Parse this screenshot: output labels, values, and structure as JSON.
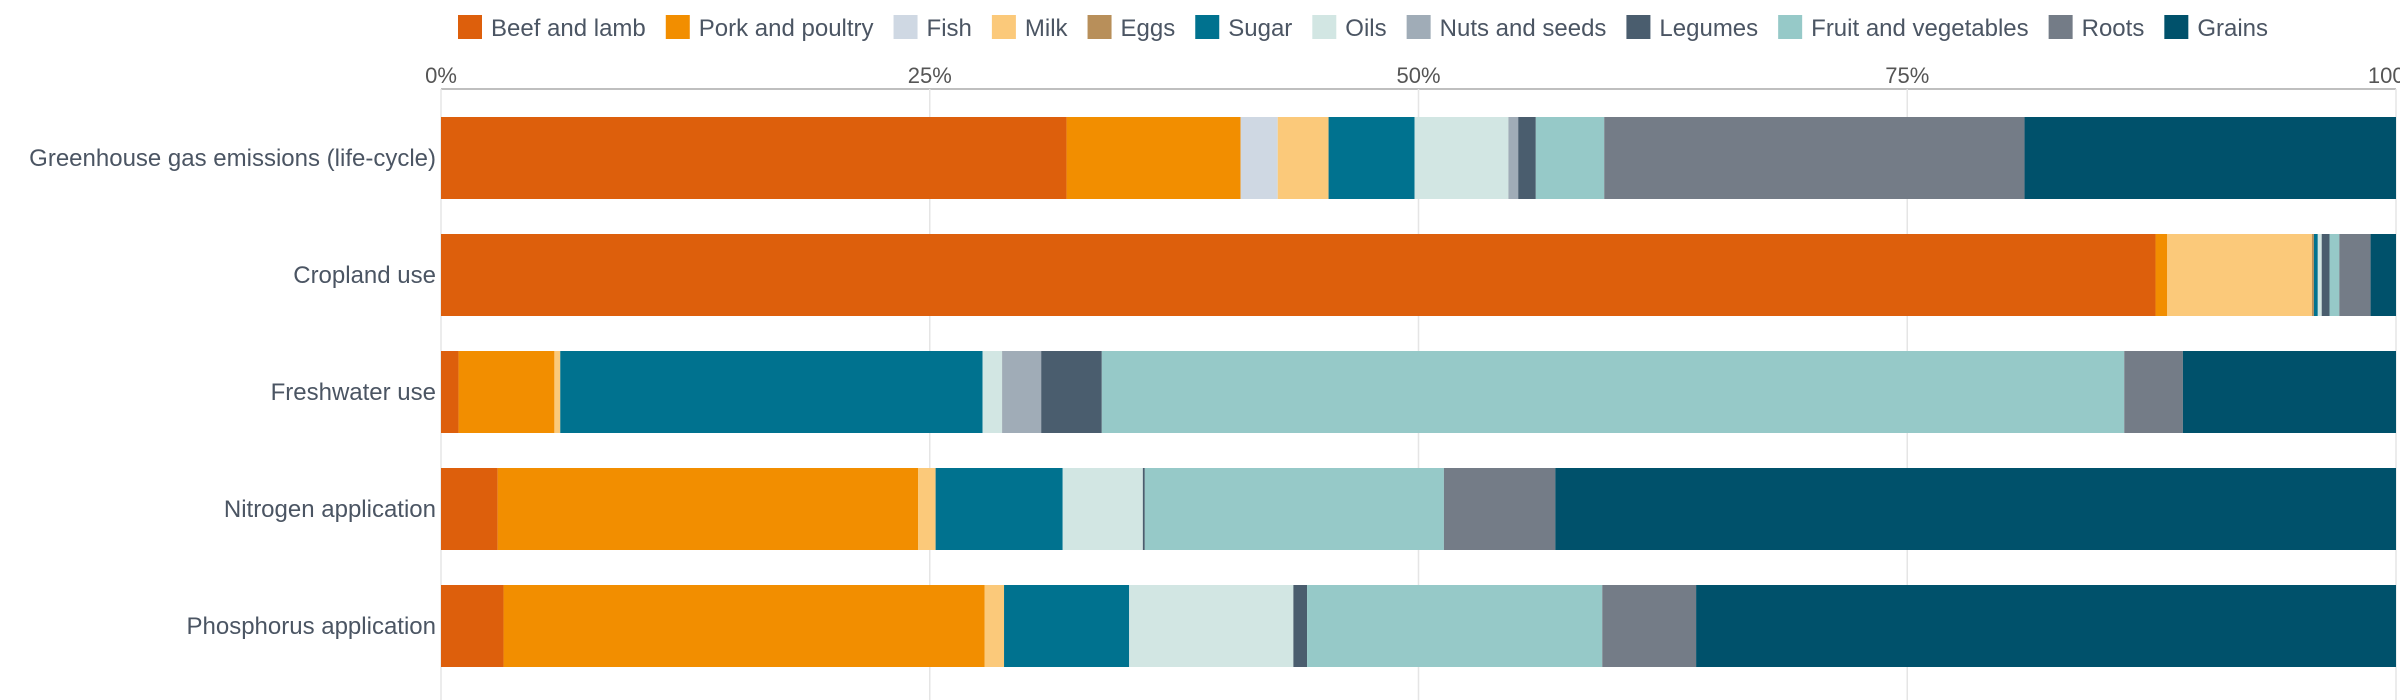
{
  "chart_data": {
    "type": "bar",
    "orientation": "horizontal",
    "stacked": true,
    "normalized": true,
    "title": "",
    "xlabel": "",
    "ylabel": "",
    "xlim": [
      0,
      100
    ],
    "x_ticks": [
      "0%",
      "25%",
      "50%",
      "75%",
      "100%"
    ],
    "x_tick_values": [
      0,
      25,
      50,
      75,
      100
    ],
    "grid": true,
    "legend": "top",
    "categories": [
      "Greenhouse gas emissions (life-cycle)",
      "Cropland use",
      "Freshwater use",
      "Nitrogen application",
      "Phosphorus application"
    ],
    "series": [
      {
        "name": "Beef and lamb",
        "color": "#dd5f0c",
        "values": [
          32.0,
          87.7,
          0.9,
          2.9,
          3.2
        ]
      },
      {
        "name": "Pork and poultry",
        "color": "#f28e00",
        "values": [
          8.9,
          0.6,
          4.9,
          21.5,
          24.6
        ]
      },
      {
        "name": "Fish",
        "color": "#cfd8e3",
        "values": [
          1.9,
          0.0,
          0.0,
          0.0,
          0.0
        ]
      },
      {
        "name": "Milk",
        "color": "#fbc97a",
        "values": [
          2.6,
          7.4,
          0.3,
          0.9,
          1.0
        ]
      },
      {
        "name": "Eggs",
        "color": "#b88f5a",
        "values": [
          0.0,
          0.1,
          0.0,
          0.0,
          0.0
        ]
      },
      {
        "name": "Sugar",
        "color": "#00728f",
        "values": [
          4.4,
          0.2,
          21.6,
          6.5,
          6.4
        ]
      },
      {
        "name": "Oils",
        "color": "#d2e6e3",
        "values": [
          4.8,
          0.2,
          1.0,
          4.1,
          8.4
        ]
      },
      {
        "name": "Nuts and seeds",
        "color": "#a0acb7",
        "values": [
          0.5,
          0.0,
          2.0,
          0.0,
          0.0
        ]
      },
      {
        "name": "Legumes",
        "color": "#4a5d6e",
        "values": [
          0.9,
          0.4,
          3.1,
          0.1,
          0.7
        ]
      },
      {
        "name": "Fruit and vegetables",
        "color": "#96c9c8",
        "values": [
          3.5,
          0.5,
          52.3,
          15.3,
          15.1
        ]
      },
      {
        "name": "Roots",
        "color": "#747c87",
        "values": [
          21.5,
          1.6,
          3.0,
          5.7,
          4.8
        ]
      },
      {
        "name": "Grains",
        "color": "#00516b",
        "values": [
          19.0,
          1.3,
          10.9,
          43.0,
          35.8
        ]
      }
    ]
  }
}
